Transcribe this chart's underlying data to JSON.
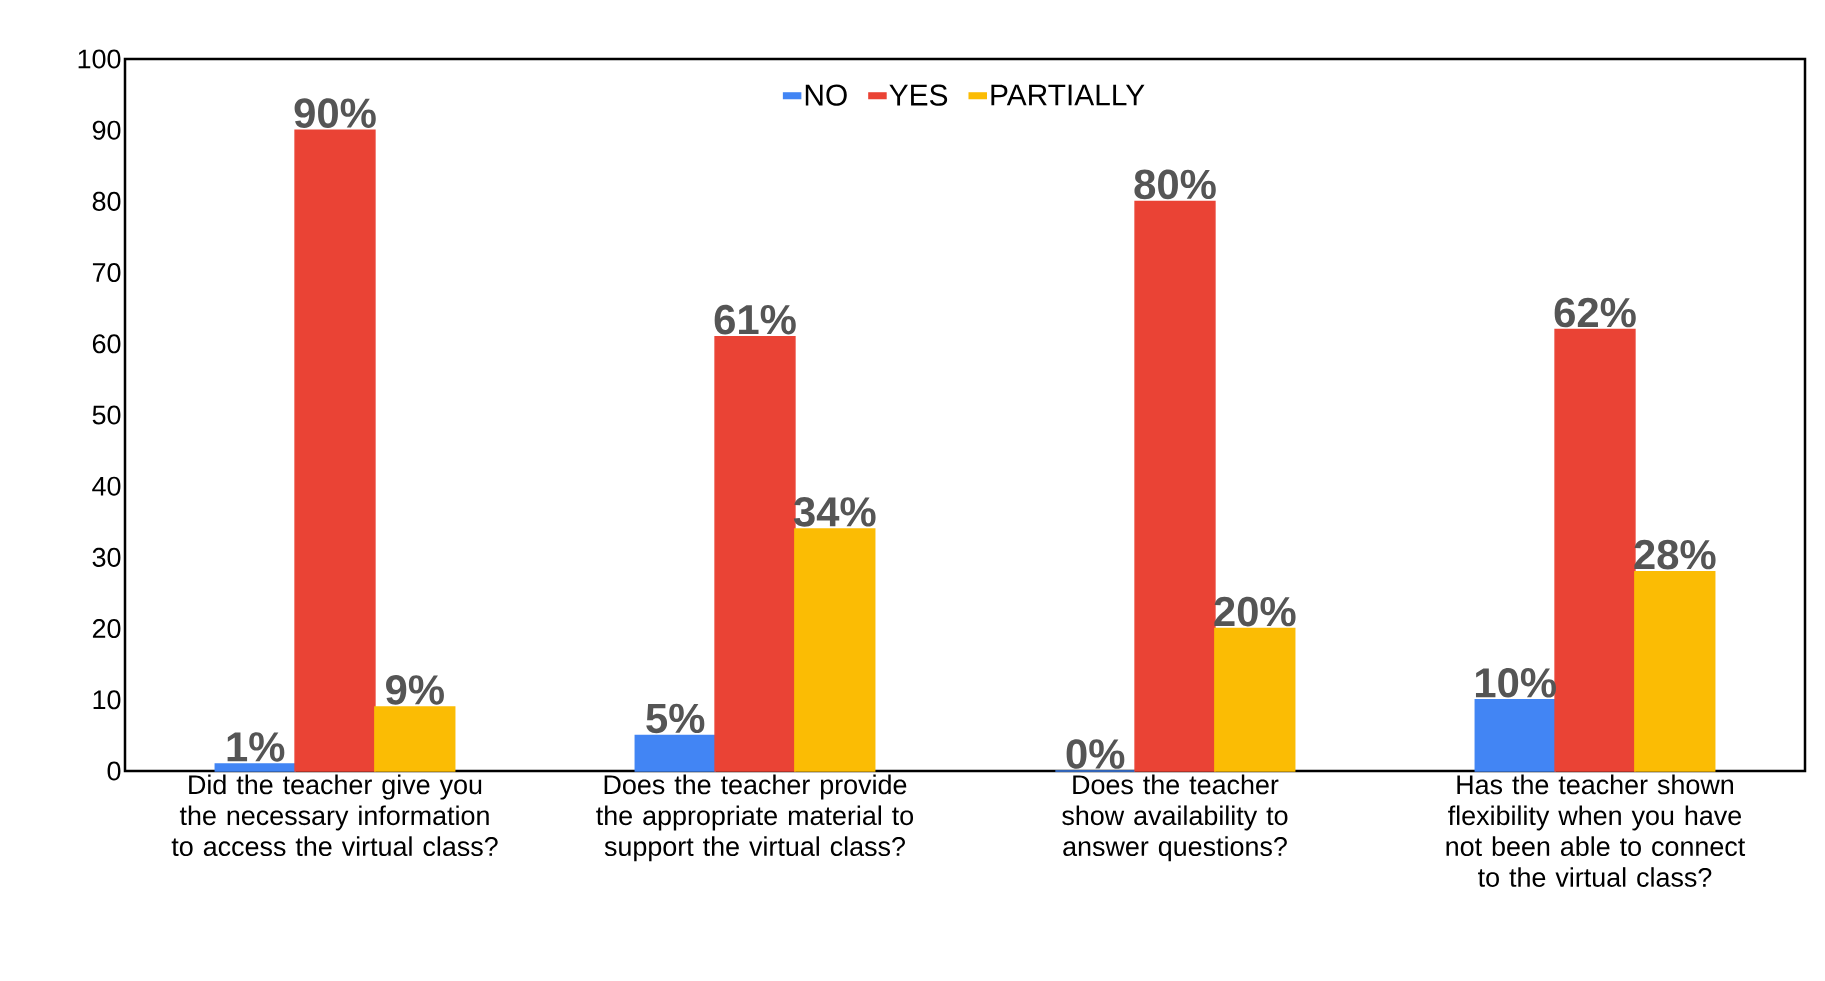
{
  "chart_data": {
    "type": "bar",
    "categories": [
      "Did the teacher give you the necessary information to access the virtual class?",
      "Does the teacher provide the appropriate material to support the virtual class?",
      "Does the teacher show availability to answer questions?",
      "Has the teacher shown flexibility when you have not been able to connect to the virtual class?"
    ],
    "series": [
      {
        "name": "NO",
        "color": "#4285f4",
        "values": [
          1,
          5,
          0,
          10
        ],
        "value_labels": [
          "1%",
          "5%",
          "0%",
          "10%"
        ]
      },
      {
        "name": "YES",
        "color": "#ea4335",
        "values": [
          90,
          61,
          80,
          62
        ],
        "value_labels": [
          "90%",
          "61%",
          "80%",
          "62%"
        ]
      },
      {
        "name": "PARTIALLY",
        "color": "#fbbc04",
        "values": [
          9,
          34,
          20,
          28
        ],
        "value_labels": [
          "9%",
          "34%",
          "20%",
          "28%"
        ]
      }
    ],
    "ylim": [
      0,
      100
    ],
    "yticks": [
      0,
      10,
      20,
      30,
      40,
      50,
      60,
      70,
      80,
      90,
      100
    ],
    "legend": "top",
    "grid": false
  }
}
